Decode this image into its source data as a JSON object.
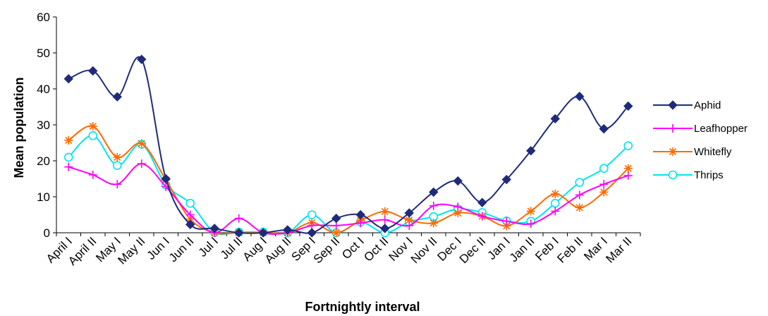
{
  "chart_data": {
    "type": "line",
    "title": "",
    "xlabel": "Fortnightly interval",
    "ylabel": "Mean population",
    "ylim": [
      0,
      60
    ],
    "yticks": [
      0,
      10,
      20,
      30,
      40,
      50,
      60
    ],
    "grid": false,
    "legend_position": "right",
    "categories": [
      "April I",
      "April II",
      "May I",
      "May II",
      "Jun I",
      "Jun II",
      "Jul I",
      "Jul II",
      "Aug I",
      "Aug II",
      "Sep I",
      "Sep II",
      "Oct I",
      "Oct II",
      "Nov I",
      "Nov II",
      "Dec I",
      "Dec II",
      "Jan I",
      "Jan II",
      "Feb I",
      "Feb II",
      "Mar I",
      "Mar II"
    ],
    "series": [
      {
        "name": "Aphid",
        "color": "#1f2a7a",
        "marker": "diamond",
        "values": [
          42.8,
          45,
          37.8,
          48.2,
          15,
          2.3,
          1.2,
          0,
          0,
          0.8,
          0,
          4,
          5,
          1.2,
          5.5,
          11.3,
          14.4,
          8.4,
          14.8,
          22.8,
          31.7,
          37.9,
          28.9,
          35.2
        ]
      },
      {
        "name": "Leafhopper",
        "color": "#ff00ff",
        "marker": "plus",
        "values": [
          18.3,
          16.1,
          13.5,
          19.2,
          12.8,
          5,
          0,
          4,
          0,
          0,
          2,
          2,
          2.7,
          3.6,
          2,
          7.5,
          7.2,
          4.6,
          3.2,
          2.5,
          6,
          10.5,
          13.5,
          15.9
        ]
      },
      {
        "name": "Whitefly",
        "color": "#ff6a00",
        "marker": "asterisk",
        "values": [
          25.7,
          29.6,
          21,
          24.8,
          14.7,
          3.8,
          0,
          0,
          0,
          0,
          2.8,
          0,
          3.4,
          5.9,
          3.5,
          2.7,
          5.5,
          4.6,
          1.9,
          6,
          10.8,
          7,
          11.3,
          17.9
        ]
      },
      {
        "name": "Thrips",
        "color": "#00e5ee",
        "marker": "circle",
        "values": [
          21,
          27,
          18.7,
          24.6,
          13.3,
          8.2,
          0.1,
          0.2,
          0.2,
          0,
          5,
          0,
          3,
          0,
          3,
          4.5,
          6.6,
          5.6,
          3.3,
          3.2,
          8.2,
          14,
          17.9,
          24.2
        ]
      }
    ]
  }
}
